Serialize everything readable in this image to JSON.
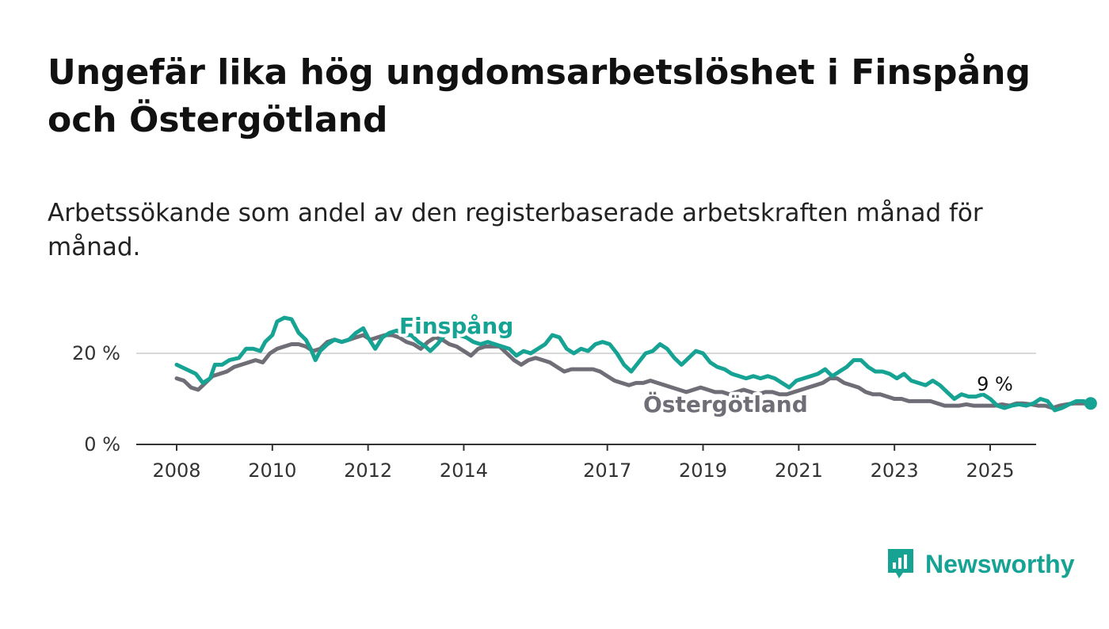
{
  "title": "Ungefär lika hög ungdomsarbetslöshet i Finspång och Östergötland",
  "subtitle": "Arbetssökande som andel av den registerbaserade arbetskraften månad för månad.",
  "brand": {
    "name": "Newsworthy",
    "icon": "newsworthy-logo-icon",
    "color": "#16a394"
  },
  "chart_data": {
    "type": "line",
    "title": "Ungefär lika hög ungdomsarbetslöshet i Finspång och Östergötland",
    "subtitle": "Arbetssökande som andel av den registerbaserade arbetskraften månad för månad.",
    "xlabel": "",
    "ylabel": "",
    "ylim": [
      0,
      30
    ],
    "yticks": [
      {
        "value": 0,
        "label": "0 %"
      },
      {
        "value": 20,
        "label": "20 %"
      }
    ],
    "xticks": [
      {
        "value": 2008,
        "label": "2008"
      },
      {
        "value": 2010,
        "label": "2010"
      },
      {
        "value": 2012,
        "label": "2012"
      },
      {
        "value": 2014,
        "label": "2014"
      },
      {
        "value": 2017,
        "label": "2017"
      },
      {
        "value": 2019,
        "label": "2019"
      },
      {
        "value": 2021,
        "label": "2021"
      },
      {
        "value": 2023,
        "label": "2023"
      },
      {
        "value": 2025,
        "label": "2025"
      }
    ],
    "grid": true,
    "legend": "direct labels",
    "end_label": "9 %",
    "series": [
      {
        "name": "Finspång",
        "color": "#16a394",
        "points": [
          [
            2008.0,
            17.5
          ],
          [
            2008.2,
            16.5
          ],
          [
            2008.4,
            15.5
          ],
          [
            2008.55,
            13.5
          ],
          [
            2008.7,
            14.5
          ],
          [
            2008.8,
            17.5
          ],
          [
            2008.95,
            17.5
          ],
          [
            2009.1,
            18.5
          ],
          [
            2009.3,
            19.0
          ],
          [
            2009.45,
            21.0
          ],
          [
            2009.6,
            21.0
          ],
          [
            2009.75,
            20.5
          ],
          [
            2009.85,
            22.5
          ],
          [
            2010.0,
            24.0
          ],
          [
            2010.1,
            27.0
          ],
          [
            2010.25,
            27.8
          ],
          [
            2010.4,
            27.5
          ],
          [
            2010.55,
            24.5
          ],
          [
            2010.7,
            23.0
          ],
          [
            2010.8,
            21.0
          ],
          [
            2010.9,
            18.5
          ],
          [
            2011.0,
            20.5
          ],
          [
            2011.15,
            22.0
          ],
          [
            2011.3,
            23.0
          ],
          [
            2011.45,
            22.5
          ],
          [
            2011.6,
            23.0
          ],
          [
            2011.75,
            24.5
          ],
          [
            2011.9,
            25.5
          ],
          [
            2012.0,
            23.5
          ],
          [
            2012.15,
            21.0
          ],
          [
            2012.3,
            23.5
          ],
          [
            2012.45,
            24.5
          ],
          [
            2012.6,
            25.0
          ],
          [
            2012.75,
            24.0
          ],
          [
            2012.9,
            24.0
          ],
          [
            2013.05,
            22.5
          ],
          [
            2013.2,
            21.5
          ],
          [
            2013.3,
            20.5
          ],
          [
            2013.45,
            22.0
          ],
          [
            2013.6,
            24.0
          ],
          [
            2013.75,
            24.5
          ],
          [
            2013.9,
            24.0
          ],
          [
            2014.05,
            23.5
          ],
          [
            2014.2,
            22.5
          ],
          [
            2014.35,
            22.0
          ],
          [
            2014.5,
            22.5
          ],
          [
            2014.65,
            22.0
          ],
          [
            2014.8,
            21.5
          ],
          [
            2014.95,
            21.0
          ],
          [
            2015.1,
            19.5
          ],
          [
            2015.25,
            20.5
          ],
          [
            2015.4,
            20.0
          ],
          [
            2015.55,
            21.0
          ],
          [
            2015.7,
            22.0
          ],
          [
            2015.85,
            24.0
          ],
          [
            2016.0,
            23.5
          ],
          [
            2016.15,
            21.0
          ],
          [
            2016.3,
            20.0
          ],
          [
            2016.45,
            21.0
          ],
          [
            2016.6,
            20.5
          ],
          [
            2016.75,
            22.0
          ],
          [
            2016.9,
            22.5
          ],
          [
            2017.05,
            22.0
          ],
          [
            2017.2,
            20.0
          ],
          [
            2017.35,
            17.5
          ],
          [
            2017.5,
            16.0
          ],
          [
            2017.65,
            18.0
          ],
          [
            2017.8,
            20.0
          ],
          [
            2017.95,
            20.5
          ],
          [
            2018.1,
            22.0
          ],
          [
            2018.25,
            21.0
          ],
          [
            2018.4,
            19.0
          ],
          [
            2018.55,
            17.5
          ],
          [
            2018.7,
            19.0
          ],
          [
            2018.85,
            20.5
          ],
          [
            2019.0,
            20.0
          ],
          [
            2019.15,
            18.0
          ],
          [
            2019.3,
            17.0
          ],
          [
            2019.45,
            16.5
          ],
          [
            2019.6,
            15.5
          ],
          [
            2019.75,
            15.0
          ],
          [
            2019.9,
            14.5
          ],
          [
            2020.05,
            15.0
          ],
          [
            2020.2,
            14.5
          ],
          [
            2020.35,
            15.0
          ],
          [
            2020.5,
            14.5
          ],
          [
            2020.65,
            13.5
          ],
          [
            2020.8,
            12.5
          ],
          [
            2020.95,
            14.0
          ],
          [
            2021.1,
            14.5
          ],
          [
            2021.25,
            15.0
          ],
          [
            2021.4,
            15.5
          ],
          [
            2021.55,
            16.5
          ],
          [
            2021.7,
            15.0
          ],
          [
            2021.85,
            16.0
          ],
          [
            2022.0,
            17.0
          ],
          [
            2022.15,
            18.5
          ],
          [
            2022.3,
            18.5
          ],
          [
            2022.45,
            17.0
          ],
          [
            2022.6,
            16.0
          ],
          [
            2022.75,
            16.0
          ],
          [
            2022.9,
            15.5
          ],
          [
            2023.05,
            14.5
          ],
          [
            2023.2,
            15.5
          ],
          [
            2023.35,
            14.0
          ],
          [
            2023.5,
            13.5
          ],
          [
            2023.65,
            13.0
          ],
          [
            2023.8,
            14.0
          ],
          [
            2023.95,
            13.0
          ],
          [
            2024.1,
            11.5
          ],
          [
            2024.25,
            10.0
          ],
          [
            2024.4,
            11.0
          ],
          [
            2024.55,
            10.5
          ],
          [
            2024.7,
            10.5
          ],
          [
            2024.85,
            11.0
          ],
          [
            2025.0,
            10.0
          ],
          [
            2025.15,
            8.5
          ],
          [
            2025.3,
            8.0
          ],
          [
            2025.45,
            8.5
          ],
          [
            2025.6,
            8.8
          ],
          [
            2025.75,
            8.5
          ],
          [
            2025.9,
            9.0
          ],
          [
            2026.05,
            10.0
          ],
          [
            2026.2,
            9.5
          ],
          [
            2026.35,
            7.5
          ],
          [
            2026.5,
            8.0
          ],
          [
            2026.65,
            8.8
          ],
          [
            2026.8,
            9.5
          ],
          [
            2026.95,
            9.5
          ],
          [
            2027.1,
            9.0
          ]
        ]
      },
      {
        "name": "Östergötland",
        "color": "#6f6e77",
        "points": [
          [
            2008.0,
            14.5
          ],
          [
            2008.15,
            14.0
          ],
          [
            2008.3,
            12.5
          ],
          [
            2008.45,
            12.0
          ],
          [
            2008.6,
            13.5
          ],
          [
            2008.75,
            15.0
          ],
          [
            2008.9,
            15.5
          ],
          [
            2009.05,
            16.0
          ],
          [
            2009.2,
            17.0
          ],
          [
            2009.35,
            17.5
          ],
          [
            2009.5,
            18.0
          ],
          [
            2009.65,
            18.5
          ],
          [
            2009.8,
            18.0
          ],
          [
            2009.95,
            20.0
          ],
          [
            2010.1,
            21.0
          ],
          [
            2010.25,
            21.5
          ],
          [
            2010.4,
            22.0
          ],
          [
            2010.55,
            22.0
          ],
          [
            2010.7,
            21.5
          ],
          [
            2010.85,
            20.5
          ],
          [
            2011.0,
            21.0
          ],
          [
            2011.15,
            22.5
          ],
          [
            2011.3,
            23.0
          ],
          [
            2011.45,
            22.5
          ],
          [
            2011.6,
            23.0
          ],
          [
            2011.75,
            23.5
          ],
          [
            2011.9,
            24.0
          ],
          [
            2012.05,
            23.0
          ],
          [
            2012.2,
            23.5
          ],
          [
            2012.35,
            24.0
          ],
          [
            2012.5,
            24.0
          ],
          [
            2012.65,
            23.5
          ],
          [
            2012.8,
            22.5
          ],
          [
            2012.95,
            22.0
          ],
          [
            2013.1,
            21.0
          ],
          [
            2013.25,
            22.5
          ],
          [
            2013.4,
            23.5
          ],
          [
            2013.55,
            23.0
          ],
          [
            2013.7,
            22.0
          ],
          [
            2013.85,
            21.5
          ],
          [
            2014.0,
            20.5
          ],
          [
            2014.15,
            19.5
          ],
          [
            2014.3,
            21.0
          ],
          [
            2014.45,
            21.5
          ],
          [
            2014.6,
            21.5
          ],
          [
            2014.75,
            21.5
          ],
          [
            2014.9,
            20.0
          ],
          [
            2015.05,
            18.5
          ],
          [
            2015.2,
            17.5
          ],
          [
            2015.35,
            18.5
          ],
          [
            2015.5,
            19.0
          ],
          [
            2015.65,
            18.5
          ],
          [
            2015.8,
            18.0
          ],
          [
            2015.95,
            17.0
          ],
          [
            2016.1,
            16.0
          ],
          [
            2016.25,
            16.5
          ],
          [
            2016.4,
            16.5
          ],
          [
            2016.55,
            16.5
          ],
          [
            2016.7,
            16.5
          ],
          [
            2016.85,
            16.0
          ],
          [
            2017.0,
            15.0
          ],
          [
            2017.15,
            14.0
          ],
          [
            2017.3,
            13.5
          ],
          [
            2017.45,
            13.0
          ],
          [
            2017.6,
            13.5
          ],
          [
            2017.75,
            13.5
          ],
          [
            2017.9,
            14.0
          ],
          [
            2018.05,
            13.5
          ],
          [
            2018.2,
            13.0
          ],
          [
            2018.35,
            12.5
          ],
          [
            2018.5,
            12.0
          ],
          [
            2018.65,
            11.5
          ],
          [
            2018.8,
            12.0
          ],
          [
            2018.95,
            12.5
          ],
          [
            2019.1,
            12.0
          ],
          [
            2019.25,
            11.5
          ],
          [
            2019.4,
            11.5
          ],
          [
            2019.55,
            11.0
          ],
          [
            2019.7,
            11.5
          ],
          [
            2019.85,
            12.0
          ],
          [
            2020.0,
            11.5
          ],
          [
            2020.15,
            11.0
          ],
          [
            2020.3,
            11.5
          ],
          [
            2020.45,
            11.5
          ],
          [
            2020.6,
            11.0
          ],
          [
            2020.75,
            11.0
          ],
          [
            2020.9,
            11.5
          ],
          [
            2021.05,
            12.0
          ],
          [
            2021.2,
            12.5
          ],
          [
            2021.35,
            13.0
          ],
          [
            2021.5,
            13.5
          ],
          [
            2021.65,
            14.5
          ],
          [
            2021.8,
            14.5
          ],
          [
            2021.95,
            13.5
          ],
          [
            2022.1,
            13.0
          ],
          [
            2022.25,
            12.5
          ],
          [
            2022.4,
            11.5
          ],
          [
            2022.55,
            11.0
          ],
          [
            2022.7,
            11.0
          ],
          [
            2022.85,
            10.5
          ],
          [
            2023.0,
            10.0
          ],
          [
            2023.15,
            10.0
          ],
          [
            2023.3,
            9.5
          ],
          [
            2023.45,
            9.5
          ],
          [
            2023.6,
            9.5
          ],
          [
            2023.75,
            9.5
          ],
          [
            2023.9,
            9.0
          ],
          [
            2024.05,
            8.5
          ],
          [
            2024.2,
            8.5
          ],
          [
            2024.35,
            8.5
          ],
          [
            2024.5,
            8.8
          ],
          [
            2024.65,
            8.5
          ],
          [
            2024.8,
            8.5
          ],
          [
            2024.95,
            8.5
          ],
          [
            2025.1,
            8.5
          ],
          [
            2025.25,
            8.8
          ],
          [
            2025.4,
            8.5
          ],
          [
            2025.55,
            9.0
          ],
          [
            2025.7,
            9.0
          ],
          [
            2025.85,
            8.8
          ],
          [
            2026.0,
            8.5
          ],
          [
            2026.15,
            8.5
          ],
          [
            2026.3,
            8.0
          ],
          [
            2026.45,
            8.5
          ],
          [
            2026.6,
            8.8
          ],
          [
            2026.75,
            9.0
          ],
          [
            2026.9,
            9.0
          ],
          [
            2027.05,
            9.0
          ]
        ]
      }
    ]
  }
}
